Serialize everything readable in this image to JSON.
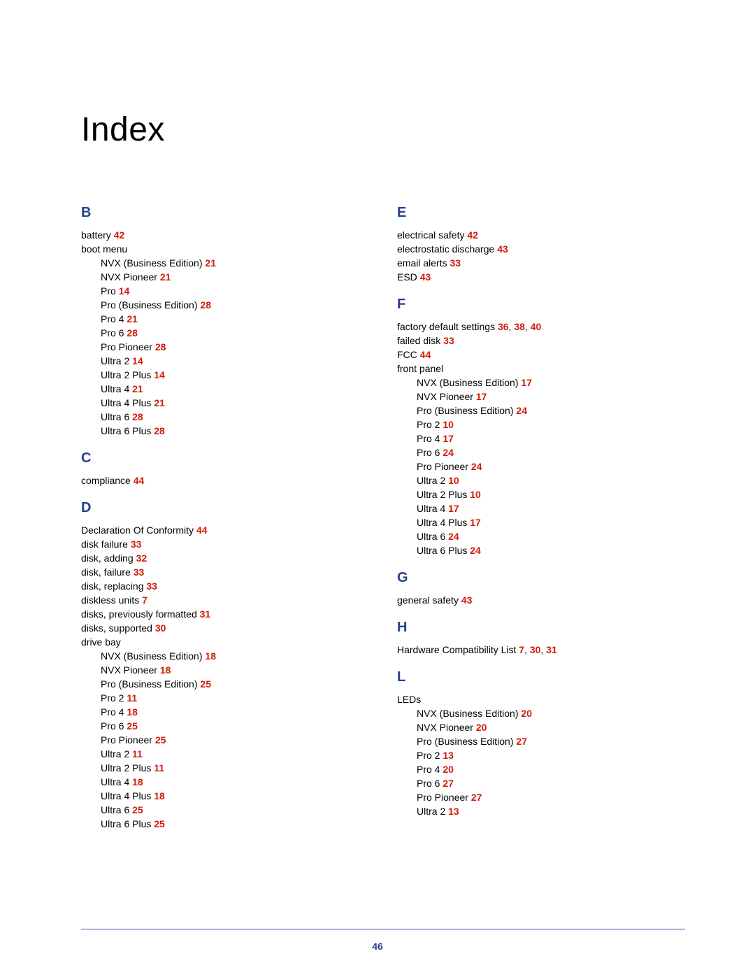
{
  "title": "Index",
  "page_number": "46",
  "colors": {
    "heading": "#254190",
    "page_link": "#d11a0a",
    "text": "#000000",
    "rule": "#254190",
    "background": "#ffffff"
  },
  "typography": {
    "title_fontsize": 48,
    "letter_fontsize": 20,
    "body_fontsize": 14,
    "line_height": 20
  },
  "columns": [
    {
      "sections": [
        {
          "letter": "B",
          "entries": [
            {
              "label": "battery",
              "pages": [
                "42"
              ]
            },
            {
              "label": "boot menu",
              "pages": [],
              "children": [
                {
                  "label": "NVX (Business Edition)",
                  "pages": [
                    "21"
                  ]
                },
                {
                  "label": "NVX Pioneer",
                  "pages": [
                    "21"
                  ]
                },
                {
                  "label": "Pro",
                  "pages": [
                    "14"
                  ]
                },
                {
                  "label": "Pro (Business Edition)",
                  "pages": [
                    "28"
                  ]
                },
                {
                  "label": "Pro 4",
                  "pages": [
                    "21"
                  ]
                },
                {
                  "label": "Pro 6",
                  "pages": [
                    "28"
                  ]
                },
                {
                  "label": "Pro Pioneer",
                  "pages": [
                    "28"
                  ]
                },
                {
                  "label": "Ultra 2",
                  "pages": [
                    "14"
                  ]
                },
                {
                  "label": "Ultra 2 Plus",
                  "pages": [
                    "14"
                  ]
                },
                {
                  "label": "Ultra 4",
                  "pages": [
                    "21"
                  ]
                },
                {
                  "label": "Ultra 4 Plus",
                  "pages": [
                    "21"
                  ]
                },
                {
                  "label": "Ultra 6",
                  "pages": [
                    "28"
                  ]
                },
                {
                  "label": "Ultra 6 Plus",
                  "pages": [
                    "28"
                  ]
                }
              ]
            }
          ]
        },
        {
          "letter": "C",
          "entries": [
            {
              "label": "compliance",
              "pages": [
                "44"
              ]
            }
          ]
        },
        {
          "letter": "D",
          "entries": [
            {
              "label": "Declaration Of Conformity",
              "pages": [
                "44"
              ]
            },
            {
              "label": "disk failure",
              "pages": [
                "33"
              ]
            },
            {
              "label": "disk, adding",
              "pages": [
                "32"
              ]
            },
            {
              "label": "disk, failure",
              "pages": [
                "33"
              ]
            },
            {
              "label": "disk, replacing",
              "pages": [
                "33"
              ]
            },
            {
              "label": "diskless units",
              "pages": [
                "7"
              ]
            },
            {
              "label": "disks, previously formatted",
              "pages": [
                "31"
              ]
            },
            {
              "label": "disks, supported",
              "pages": [
                "30"
              ]
            },
            {
              "label": "drive bay",
              "pages": [],
              "children": [
                {
                  "label": "NVX (Business Edition)",
                  "pages": [
                    "18"
                  ]
                },
                {
                  "label": "NVX Pioneer",
                  "pages": [
                    "18"
                  ]
                },
                {
                  "label": "Pro (Business Edition)",
                  "pages": [
                    "25"
                  ]
                },
                {
                  "label": "Pro 2",
                  "pages": [
                    "11"
                  ]
                },
                {
                  "label": "Pro 4",
                  "pages": [
                    "18"
                  ]
                },
                {
                  "label": "Pro 6",
                  "pages": [
                    "25"
                  ]
                },
                {
                  "label": "Pro Pioneer",
                  "pages": [
                    "25"
                  ]
                },
                {
                  "label": "Ultra 2",
                  "pages": [
                    "11"
                  ]
                },
                {
                  "label": "Ultra 2 Plus",
                  "pages": [
                    "11"
                  ]
                },
                {
                  "label": "Ultra 4",
                  "pages": [
                    "18"
                  ]
                },
                {
                  "label": "Ultra 4 Plus",
                  "pages": [
                    "18"
                  ]
                },
                {
                  "label": "Ultra 6",
                  "pages": [
                    "25"
                  ]
                },
                {
                  "label": "Ultra 6 Plus",
                  "pages": [
                    "25"
                  ]
                }
              ]
            }
          ]
        }
      ]
    },
    {
      "sections": [
        {
          "letter": "E",
          "entries": [
            {
              "label": "electrical safety",
              "pages": [
                "42"
              ]
            },
            {
              "label": "electrostatic discharge",
              "pages": [
                "43"
              ]
            },
            {
              "label": "email alerts",
              "pages": [
                "33"
              ]
            },
            {
              "label": "ESD",
              "pages": [
                "43"
              ]
            }
          ]
        },
        {
          "letter": "F",
          "entries": [
            {
              "label": "factory default settings",
              "pages": [
                "36",
                "38",
                "40"
              ]
            },
            {
              "label": "failed disk",
              "pages": [
                "33"
              ]
            },
            {
              "label": "FCC",
              "pages": [
                "44"
              ]
            },
            {
              "label": "front panel",
              "pages": [],
              "children": [
                {
                  "label": "NVX (Business Edition)",
                  "pages": [
                    "17"
                  ]
                },
                {
                  "label": "NVX Pioneer",
                  "pages": [
                    "17"
                  ]
                },
                {
                  "label": "Pro (Business Edition)",
                  "pages": [
                    "24"
                  ]
                },
                {
                  "label": "Pro 2",
                  "pages": [
                    "10"
                  ]
                },
                {
                  "label": "Pro 4",
                  "pages": [
                    "17"
                  ]
                },
                {
                  "label": "Pro 6",
                  "pages": [
                    "24"
                  ]
                },
                {
                  "label": "Pro Pioneer",
                  "pages": [
                    "24"
                  ]
                },
                {
                  "label": "Ultra 2",
                  "pages": [
                    "10"
                  ]
                },
                {
                  "label": "Ultra 2 Plus",
                  "pages": [
                    "10"
                  ]
                },
                {
                  "label": "Ultra 4",
                  "pages": [
                    "17"
                  ]
                },
                {
                  "label": "Ultra 4 Plus",
                  "pages": [
                    "17"
                  ]
                },
                {
                  "label": "Ultra 6",
                  "pages": [
                    "24"
                  ]
                },
                {
                  "label": "Ultra 6 Plus",
                  "pages": [
                    "24"
                  ]
                }
              ]
            }
          ]
        },
        {
          "letter": "G",
          "entries": [
            {
              "label": "general safety",
              "pages": [
                "43"
              ]
            }
          ]
        },
        {
          "letter": "H",
          "entries": [
            {
              "label": "Hardware Compatibility List",
              "pages": [
                "7",
                "30",
                "31"
              ]
            }
          ]
        },
        {
          "letter": "L",
          "entries": [
            {
              "label": "LEDs",
              "pages": [],
              "children": [
                {
                  "label": "NVX (Business Edition)",
                  "pages": [
                    "20"
                  ]
                },
                {
                  "label": "NVX Pioneer",
                  "pages": [
                    "20"
                  ]
                },
                {
                  "label": "Pro (Business Edition)",
                  "pages": [
                    "27"
                  ]
                },
                {
                  "label": "Pro 2",
                  "pages": [
                    "13"
                  ]
                },
                {
                  "label": "Pro 4",
                  "pages": [
                    "20"
                  ]
                },
                {
                  "label": "Pro 6",
                  "pages": [
                    "27"
                  ]
                },
                {
                  "label": "Pro Pioneer",
                  "pages": [
                    "27"
                  ]
                },
                {
                  "label": "Ultra 2",
                  "pages": [
                    "13"
                  ]
                }
              ]
            }
          ]
        }
      ]
    }
  ]
}
